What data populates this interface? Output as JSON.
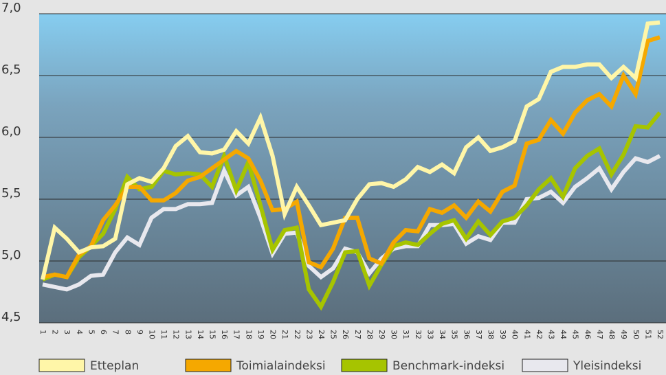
{
  "chart_data": {
    "type": "line",
    "categories": [
      "1",
      "2",
      "3",
      "4",
      "5",
      "6",
      "7",
      "8",
      "9",
      "10",
      "11",
      "12",
      "13",
      "14",
      "15",
      "16",
      "17",
      "18",
      "19",
      "20",
      "21",
      "22",
      "23",
      "24",
      "25",
      "26",
      "27",
      "28",
      "29",
      "30",
      "31",
      "32",
      "33",
      "34",
      "35",
      "36",
      "37",
      "38",
      "39",
      "40",
      "41",
      "42",
      "43",
      "44",
      "45",
      "46",
      "47",
      "48",
      "49",
      "50",
      "51",
      "52"
    ],
    "ylim": [
      4.5,
      7.0
    ],
    "yticks": [
      {
        "value": 4.5,
        "label": "4,5"
      },
      {
        "value": 5.0,
        "label": "5,0"
      },
      {
        "value": 5.5,
        "label": "5,5"
      },
      {
        "value": 6.0,
        "label": "6,0"
      },
      {
        "value": 6.5,
        "label": "6,5"
      },
      {
        "value": 7.0,
        "label": "7,0"
      }
    ],
    "grid": true,
    "series": [
      {
        "name": "Etteplan",
        "color": "#fff6a8",
        "values": [
          4.85,
          5.27,
          5.18,
          5.07,
          5.11,
          5.12,
          5.18,
          5.62,
          5.67,
          5.64,
          5.75,
          5.93,
          6.01,
          5.88,
          5.87,
          5.9,
          6.05,
          5.95,
          6.16,
          5.85,
          5.38,
          5.6,
          5.45,
          5.29,
          5.31,
          5.33,
          5.5,
          5.62,
          5.63,
          5.6,
          5.66,
          5.76,
          5.72,
          5.78,
          5.71,
          5.92,
          6.0,
          5.89,
          5.92,
          5.97,
          6.25,
          6.31,
          6.53,
          6.57,
          6.57,
          6.59,
          6.59,
          6.48,
          6.57,
          6.48,
          6.92,
          6.93
        ]
      },
      {
        "name": "Toimialaindeksi",
        "color": "#f5a800",
        "values": [
          4.87,
          4.89,
          4.87,
          5.05,
          5.12,
          5.33,
          5.45,
          5.6,
          5.6,
          5.49,
          5.49,
          5.55,
          5.65,
          5.68,
          5.75,
          5.82,
          5.89,
          5.83,
          5.65,
          5.41,
          5.42,
          5.48,
          4.99,
          4.95,
          5.1,
          5.35,
          5.35,
          5.02,
          4.98,
          5.15,
          5.25,
          5.24,
          5.42,
          5.39,
          5.45,
          5.35,
          5.48,
          5.4,
          5.56,
          5.61,
          5.95,
          5.98,
          6.14,
          6.03,
          6.2,
          6.3,
          6.35,
          6.25,
          6.5,
          6.35,
          6.78,
          6.81
        ]
      },
      {
        "name": "Benchmark-indeksi",
        "color": "#a6c400",
        "values": [
          4.85,
          4.89,
          4.87,
          5.03,
          5.12,
          5.22,
          5.42,
          5.68,
          5.58,
          5.6,
          5.73,
          5.7,
          5.71,
          5.7,
          5.6,
          5.85,
          5.57,
          5.8,
          5.45,
          5.09,
          5.25,
          5.27,
          4.77,
          4.63,
          4.83,
          5.07,
          5.08,
          4.8,
          4.97,
          5.12,
          5.15,
          5.13,
          5.22,
          5.3,
          5.33,
          5.18,
          5.32,
          5.21,
          5.32,
          5.35,
          5.45,
          5.58,
          5.67,
          5.52,
          5.75,
          5.85,
          5.91,
          5.7,
          5.86,
          6.09,
          6.08,
          6.2
        ]
      },
      {
        "name": "Yleisindeksi",
        "color": "#e8e8ee",
        "values": [
          4.81,
          4.79,
          4.77,
          4.81,
          4.88,
          4.89,
          5.07,
          5.19,
          5.13,
          5.35,
          5.42,
          5.42,
          5.46,
          5.46,
          5.47,
          5.73,
          5.53,
          5.6,
          5.35,
          5.06,
          5.22,
          5.23,
          4.96,
          4.87,
          4.94,
          5.1,
          5.07,
          4.9,
          5.02,
          5.1,
          5.12,
          5.12,
          5.29,
          5.29,
          5.3,
          5.14,
          5.2,
          5.17,
          5.31,
          5.31,
          5.5,
          5.51,
          5.56,
          5.47,
          5.6,
          5.67,
          5.75,
          5.58,
          5.72,
          5.83,
          5.8,
          5.85
        ]
      }
    ]
  }
}
